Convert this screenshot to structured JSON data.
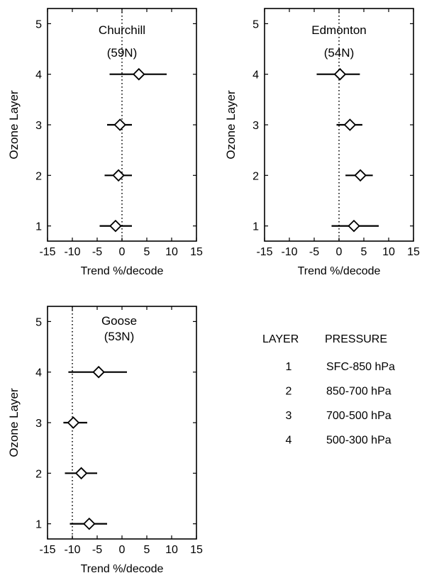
{
  "chart_data": [
    {
      "type": "scatter",
      "title": "Churchill",
      "subtitle": "(59N)",
      "xlabel": "Trend %/decode",
      "ylabel": "Ozone Layer",
      "xlim": [
        -15,
        15
      ],
      "ylim": [
        0.7,
        5.3
      ],
      "xticks": [
        -15,
        -10,
        -5,
        0,
        5,
        10,
        15
      ],
      "yticks": [
        1,
        2,
        3,
        4,
        5
      ],
      "grid": false,
      "reference_line_x": 0,
      "points": [
        {
          "layer": 1,
          "trend": -1.3,
          "err_low": -4.5,
          "err_high": 2.0
        },
        {
          "layer": 2,
          "trend": -0.7,
          "err_low": -3.5,
          "err_high": 2.0
        },
        {
          "layer": 3,
          "trend": -0.4,
          "err_low": -3.0,
          "err_high": 2.0
        },
        {
          "layer": 4,
          "trend": 3.4,
          "err_low": -2.5,
          "err_high": 9.0
        }
      ]
    },
    {
      "type": "scatter",
      "title": "Edmonton",
      "subtitle": "(54N)",
      "xlabel": "Trend %/decode",
      "ylabel": "Ozone Layer",
      "xlim": [
        -15,
        15
      ],
      "ylim": [
        0.7,
        5.3
      ],
      "xticks": [
        -15,
        -10,
        -5,
        0,
        5,
        10,
        15
      ],
      "yticks": [
        1,
        2,
        3,
        4,
        5
      ],
      "grid": false,
      "reference_line_x": 0,
      "points": [
        {
          "layer": 1,
          "trend": 3.0,
          "err_low": -1.5,
          "err_high": 8.0
        },
        {
          "layer": 2,
          "trend": 4.3,
          "err_low": 1.3,
          "err_high": 6.8
        },
        {
          "layer": 3,
          "trend": 2.2,
          "err_low": -0.5,
          "err_high": 4.7
        },
        {
          "layer": 4,
          "trend": 0.2,
          "err_low": -4.5,
          "err_high": 4.2
        }
      ]
    },
    {
      "type": "scatter",
      "title": "Goose",
      "subtitle": "(53N)",
      "xlabel": "Trend %/decode",
      "ylabel": "Ozone Layer",
      "xlim": [
        -15,
        15
      ],
      "ylim": [
        0.7,
        5.3
      ],
      "xticks": [
        -15,
        -10,
        -5,
        0,
        5,
        10,
        15
      ],
      "yticks": [
        1,
        2,
        3,
        4,
        5
      ],
      "grid": false,
      "reference_line_x": -10,
      "points": [
        {
          "layer": 1,
          "trend": -6.6,
          "err_low": -10.5,
          "err_high": -3.0
        },
        {
          "layer": 2,
          "trend": -8.2,
          "err_low": -11.5,
          "err_high": -5.0
        },
        {
          "layer": 3,
          "trend": -9.8,
          "err_low": -11.8,
          "err_high": -7.0
        },
        {
          "layer": 4,
          "trend": -4.7,
          "err_low": -10.8,
          "err_high": 1.0
        }
      ]
    }
  ],
  "legend_table": {
    "headers": [
      "LAYER",
      "PRESSURE"
    ],
    "rows": [
      {
        "layer": "1",
        "pressure": "SFC-850 hPa"
      },
      {
        "layer": "2",
        "pressure": "850-700 hPa"
      },
      {
        "layer": "3",
        "pressure": "700-500 hPa"
      },
      {
        "layer": "4",
        "pressure": "500-300 hPa"
      }
    ]
  },
  "colors": {
    "ink": "#000000",
    "background": "#ffffff"
  }
}
